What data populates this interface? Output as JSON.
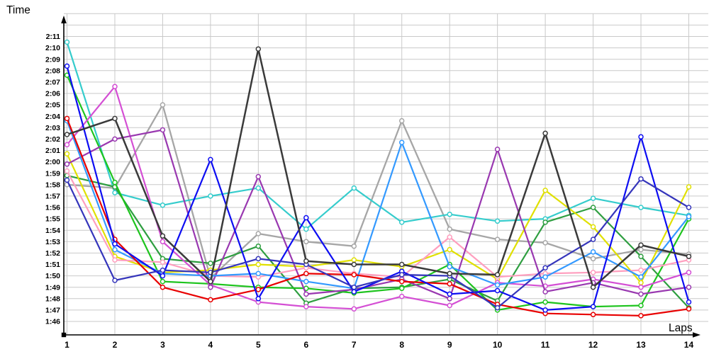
{
  "axes": {
    "y_label": "Time",
    "x_label": "Laps",
    "y_ticks": [
      "2:11",
      "2:10",
      "2:09",
      "2:08",
      "2:07",
      "2:06",
      "2:05",
      "2:04",
      "2:03",
      "2:02",
      "2:01",
      "2:00",
      "1:59",
      "1:58",
      "1:57",
      "1:56",
      "1:55",
      "1:54",
      "1:53",
      "1:52",
      "1:51",
      "1:50",
      "1:49",
      "1:48",
      "1:47",
      "1:46"
    ],
    "x_ticks": [
      "1",
      "2",
      "3",
      "4",
      "5",
      "6",
      "7",
      "8",
      "9",
      "10",
      "11",
      "12",
      "13",
      "14"
    ]
  },
  "style": {
    "grid_color": "#c9c9c9",
    "axis_color": "#000000",
    "background": "#ffffff"
  },
  "chart_data": {
    "type": "line",
    "title": "",
    "xlabel": "Laps",
    "ylabel": "Time",
    "x": [
      1,
      2,
      3,
      4,
      5,
      6,
      7,
      8,
      9,
      10,
      11,
      12,
      13,
      14
    ],
    "y_axis": {
      "top_label": "2:11",
      "bottom_label": "1:46",
      "unit": "m:ss",
      "grid": true
    },
    "legend": "none",
    "series": [
      {
        "name": "gray",
        "color": "#a6a6a6",
        "width": 2.3,
        "values": [
          "1:58.0",
          "1:57.7",
          "2:05.0",
          "1:49.8",
          "1:53.7",
          "1:53.0",
          "1:52.6",
          "2:03.6",
          "1:54.1",
          "1:53.2",
          "1:52.9",
          "1:51.5",
          "1:52.3",
          "1:51.9"
        ]
      },
      {
        "name": "cyan",
        "color": "#35cccc",
        "width": 2.2,
        "values": [
          "2:10.5",
          "1:57.3",
          "1:56.2",
          "1:57.0",
          "1:57.7",
          "1:54.1",
          "1:57.7",
          "1:54.7",
          "1:55.4",
          "1:54.8",
          "1:55.0",
          "1:56.8",
          "1:56.0",
          "1:55.3"
        ]
      },
      {
        "name": "seagreen",
        "color": "#2e9e40",
        "width": 2.2,
        "values": [
          "1:58.8",
          "1:57.8",
          "1:51.5",
          "1:51.1",
          "1:52.6",
          "1:47.6",
          "1:48.9",
          "1:49.0",
          "1:49.7",
          "1:47.8",
          "1:54.7",
          "1:56.0",
          "1:51.7",
          "1:47.2"
        ]
      },
      {
        "name": "green",
        "color": "#1ec41e",
        "width": 2.2,
        "values": [
          "2:07.6",
          "1:58.2",
          "1:49.5",
          "1:49.3",
          "1:49.0",
          "1:48.9",
          "1:48.5",
          "1:48.9",
          "1:51.0",
          "1:47.0",
          "1:47.7",
          "1:47.3",
          "1:47.4",
          "1:55.0"
        ]
      },
      {
        "name": "yellow",
        "color": "#e0e000",
        "width": 2.2,
        "values": [
          "2:00.7",
          "1:51.7",
          "1:50.3",
          "1:50.5",
          "1:51.0",
          "1:50.8",
          "1:51.4",
          "1:50.8",
          "1:52.3",
          "1:49.7",
          "1:57.5",
          "1:54.3",
          "1:49.4",
          "1:57.8"
        ]
      },
      {
        "name": "pink",
        "color": "#ff9ebe",
        "width": 2.2,
        "values": [
          "1:59.2",
          "1:51.4",
          "1:51.2",
          "1:50.0",
          "1:49.9",
          "1:50.7",
          "1:50.2",
          "1:49.9",
          "1:53.4",
          "1:49.9",
          "1:50.2",
          "1:50.3",
          "1:50.5",
          "1:51.4"
        ]
      },
      {
        "name": "magenta",
        "color": "#d44fd4",
        "width": 2.2,
        "values": [
          "2:01.5",
          "2:06.6",
          "1:53.0",
          "1:49.2",
          "1:47.7",
          "1:47.3",
          "1:47.1",
          "1:48.2",
          "1:47.4",
          "1:49.4",
          "1:49.1",
          "1:49.7",
          "1:49.0",
          "1:50.3"
        ]
      },
      {
        "name": "purple",
        "color": "#9938b0",
        "width": 2.2,
        "values": [
          "1:59.8",
          "2:02.0",
          "2:02.8",
          "1:49.0",
          "1:58.7",
          "1:48.4",
          "1:48.8",
          "1:49.7",
          "1:48.0",
          "2:01.1",
          "1:48.6",
          "1:49.4",
          "1:48.4",
          "1:49.0"
        ]
      },
      {
        "name": "dodger",
        "color": "#3399ff",
        "width": 2.2,
        "values": [
          "2:03.6",
          "1:52.3",
          "1:50.2",
          "1:50.0",
          "1:50.2",
          "1:49.5",
          "1:48.9",
          "2:01.7",
          "1:50.8",
          "1:49.2",
          "1:49.9",
          "1:52.1",
          "1:49.9",
          "1:55.2"
        ]
      },
      {
        "name": "red",
        "color": "#e80000",
        "width": 2.2,
        "values": [
          "2:03.8",
          "1:53.2",
          "1:49.0",
          "1:47.9",
          "1:48.8",
          "1:50.2",
          "1:50.1",
          "1:49.5",
          "1:49.3",
          "1:47.5",
          "1:46.7",
          "1:46.6",
          "1:46.5",
          "1:47.1"
        ]
      },
      {
        "name": "blue",
        "color": "#0d0df2",
        "width": 2.2,
        "values": [
          "2:08.4",
          "1:52.8",
          "1:50.0",
          "2:00.2",
          "1:48.0",
          "1:55.1",
          "1:48.6",
          "1:50.4",
          "1:48.4",
          "1:48.7",
          "1:47.0",
          "1:47.3",
          "2:02.2",
          "1:47.7"
        ]
      },
      {
        "name": "navy",
        "color": "#3535bb",
        "width": 2.2,
        "values": [
          "1:58.4",
          "1:49.6",
          "1:50.5",
          "1:50.3",
          "1:51.5",
          "1:51.0",
          "1:49.0",
          "1:50.1",
          "1:50.0",
          "1:47.2",
          "1:50.7",
          "1:53.2",
          "1:58.5",
          "1:56.0"
        ]
      },
      {
        "name": "black",
        "color": "#3a3a3a",
        "width": 2.5,
        "values": [
          "2:02.4",
          "2:03.8",
          "1:53.5",
          "1:49.5",
          "2:09.9",
          "1:51.3",
          "1:51.0",
          "1:51.0",
          "1:50.2",
          "1:50.1",
          "2:02.5",
          "1:49.0",
          "1:52.7",
          "1:51.7"
        ]
      }
    ]
  }
}
